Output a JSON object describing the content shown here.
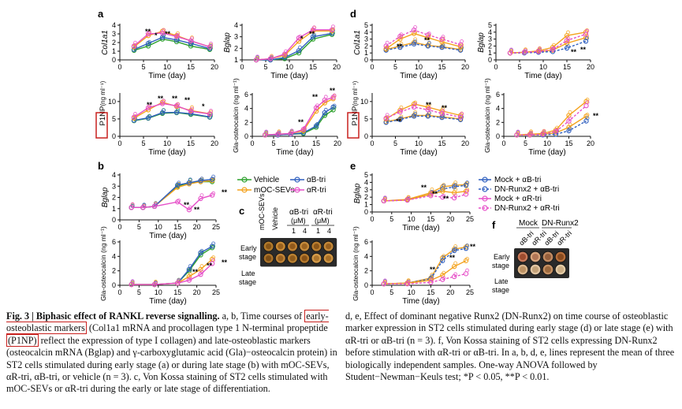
{
  "colors": {
    "vehicle": "#2ca02c",
    "mocsevs": "#f4a21c",
    "abtri": "#2f5fbf",
    "artri": "#e64fc8",
    "highlight": "#c8201e"
  },
  "figure": {
    "panel_labels": {
      "a": "a",
      "b": "b",
      "c": "c",
      "d": "d",
      "e": "e",
      "f": "f"
    },
    "ticks": {
      "t20": [
        "0",
        "5",
        "10",
        "15",
        "20"
      ],
      "t25": [
        "0",
        "5",
        "10",
        "15",
        "20",
        "25"
      ],
      "y0_4": [
        "0",
        "1",
        "2",
        "3",
        "4"
      ],
      "y0_5": [
        "0",
        "1",
        "2",
        "3",
        "4",
        "5"
      ],
      "y1_4": [
        "1",
        "2",
        "3",
        "4"
      ],
      "y0_10": [
        "0",
        "5",
        "10"
      ],
      "y0_6": [
        "0",
        "2",
        "4",
        "6"
      ]
    },
    "labels": {
      "time": "Time (day)",
      "col1a1": "Col1a1",
      "bglap": "Bglap",
      "p1np": "P1NP",
      "p1np_unit": "(ng ml⁻¹)",
      "gla": "Gla-osteocalcin (ng ml⁻¹)"
    },
    "sig": {
      "single": "*",
      "double": "**"
    },
    "legend_b": [
      "Vehicle",
      "mOC-SEVs",
      "αB-tri",
      "αR-tri"
    ],
    "legend_e": [
      "Mock + αB-tri",
      "DN-Runx2 + αB-tri",
      "Mock + αR-tri",
      "DN-Runx2 + αR-tri"
    ],
    "panel_c": {
      "cols": [
        "mOC-SEVs",
        "Vehicle"
      ],
      "abtri": "αB-tri",
      "artri": "αR-tri",
      "um": "(μM)",
      "doses": [
        "1",
        "4",
        "1",
        "4"
      ],
      "rows": [
        "Early stage",
        "Late stage"
      ]
    },
    "panel_f": {
      "mock": "Mock",
      "dn": "DN-Runx2",
      "cols": [
        "αB-tri",
        "αR-tri",
        "αB-tri",
        "αR-tri"
      ],
      "rows": [
        "Early stage",
        "Late stage"
      ]
    }
  },
  "chart_data": [
    {
      "id": "a1",
      "type": "line",
      "ylabel": "Col1a1",
      "xlabel": "Time (day)",
      "xlim": [
        0,
        20
      ],
      "ylim": [
        0,
        4
      ],
      "x": [
        3,
        6,
        9,
        12,
        15,
        19
      ],
      "series": [
        {
          "name": "Vehicle",
          "values": [
            1.1,
            1.6,
            2.4,
            2.1,
            1.6,
            1.2
          ]
        },
        {
          "name": "αB-tri",
          "values": [
            1.2,
            1.9,
            2.6,
            2.3,
            1.9,
            1.3
          ]
        },
        {
          "name": "mOC-SEVs",
          "values": [
            1.5,
            2.8,
            3.3,
            2.8,
            2.2,
            1.5
          ]
        },
        {
          "name": "αR-tri",
          "values": [
            1.6,
            3.0,
            3.1,
            2.7,
            2.2,
            1.5
          ]
        }
      ]
    },
    {
      "id": "a2",
      "type": "line",
      "ylabel": "Bglap",
      "xlabel": "Time (day)",
      "xlim": [
        0,
        20
      ],
      "ylim": [
        1,
        4
      ],
      "x": [
        3,
        6,
        9,
        12,
        15,
        19
      ],
      "series": [
        {
          "name": "Vehicle",
          "values": [
            1.0,
            1.0,
            1.1,
            1.6,
            2.8,
            3.2
          ]
        },
        {
          "name": "αB-tri",
          "values": [
            1.0,
            1.0,
            1.2,
            1.8,
            3.0,
            3.3
          ]
        },
        {
          "name": "mOC-SEVs",
          "values": [
            1.0,
            1.1,
            1.4,
            2.6,
            3.5,
            3.5
          ]
        },
        {
          "name": "αR-tri",
          "values": [
            1.0,
            1.1,
            1.5,
            2.9,
            3.6,
            3.6
          ]
        }
      ]
    },
    {
      "id": "a3",
      "type": "line",
      "ylabel": "P1NP (ng ml⁻¹)",
      "xlabel": "Time (day)",
      "xlim": [
        0,
        20
      ],
      "ylim": [
        0,
        12
      ],
      "x": [
        3,
        6,
        9,
        12,
        15,
        19
      ],
      "series": [
        {
          "name": "Vehicle",
          "values": [
            4.5,
            5.2,
            6.6,
            6.8,
            6.3,
            5.5
          ]
        },
        {
          "name": "αB-tri",
          "values": [
            4.6,
            5.3,
            6.8,
            6.9,
            6.5,
            5.6
          ]
        },
        {
          "name": "mOC-SEVs",
          "values": [
            5.2,
            7.6,
            9.8,
            8.6,
            7.4,
            6.5
          ]
        },
        {
          "name": "αR-tri",
          "values": [
            5.5,
            8.2,
            9.4,
            8.8,
            7.2,
            6.4
          ]
        }
      ]
    },
    {
      "id": "a4",
      "type": "line",
      "ylabel": "Gla-osteocalcin (ng ml⁻¹)",
      "xlabel": "Time (day)",
      "xlim": [
        0,
        20
      ],
      "ylim": [
        0,
        6
      ],
      "x": [
        3,
        6,
        9,
        12,
        15,
        17,
        19
      ],
      "series": [
        {
          "name": "Vehicle",
          "values": [
            0.2,
            0.2,
            0.3,
            0.4,
            1.3,
            3.0,
            3.8
          ]
        },
        {
          "name": "αB-tri",
          "values": [
            0.2,
            0.2,
            0.3,
            0.5,
            1.5,
            3.4,
            4.2
          ]
        },
        {
          "name": "mOC-SEVs",
          "values": [
            0.2,
            0.3,
            0.4,
            0.8,
            3.6,
            4.8,
            5.4
          ]
        },
        {
          "name": "αR-tri",
          "values": [
            0.2,
            0.3,
            0.4,
            1.0,
            4.1,
            5.2,
            5.6
          ]
        }
      ]
    },
    {
      "id": "b1",
      "type": "line",
      "ylabel": "Bglap",
      "xlabel": "Time (day)",
      "xlim": [
        0,
        25
      ],
      "ylim": [
        0,
        4
      ],
      "x": [
        3,
        6,
        9,
        15,
        18,
        21,
        24
      ],
      "series": [
        {
          "name": "Vehicle",
          "values": [
            1.1,
            1.1,
            1.2,
            3.0,
            3.3,
            3.4,
            3.4
          ]
        },
        {
          "name": "mOC-SEVs",
          "values": [
            1.1,
            1.1,
            1.2,
            2.9,
            3.2,
            3.4,
            3.5
          ]
        },
        {
          "name": "αB-tri",
          "values": [
            1.1,
            1.1,
            1.2,
            3.1,
            3.3,
            3.5,
            3.6
          ]
        },
        {
          "name": "αR-tri",
          "values": [
            1.1,
            1.1,
            1.2,
            1.6,
            0.9,
            1.9,
            2.2
          ]
        }
      ]
    },
    {
      "id": "b2",
      "type": "line",
      "ylabel": "Gla-osteocalcin (ng ml⁻¹)",
      "xlabel": "Time (day)",
      "xlim": [
        0,
        25
      ],
      "ylim": [
        0,
        6
      ],
      "x": [
        3,
        9,
        15,
        18,
        21,
        24
      ],
      "series": [
        {
          "name": "Vehicle",
          "values": [
            0.1,
            0.1,
            0.3,
            2.0,
            4.2,
            5.2
          ]
        },
        {
          "name": "αB-tri",
          "values": [
            0.1,
            0.1,
            0.3,
            2.2,
            4.5,
            5.4
          ]
        },
        {
          "name": "mOC-SEVs",
          "values": [
            0.1,
            0.1,
            0.3,
            1.2,
            2.2,
            3.6
          ]
        },
        {
          "name": "αR-tri",
          "values": [
            0.1,
            0.1,
            0.3,
            0.7,
            1.5,
            3.0
          ]
        }
      ]
    },
    {
      "id": "d1",
      "type": "line",
      "ylabel": "Col1a1",
      "xlabel": "Time (day)",
      "xlim": [
        0,
        20
      ],
      "ylim": [
        0,
        5
      ],
      "x": [
        3,
        6,
        9,
        12,
        15,
        19
      ],
      "series": [
        {
          "name": "Mock + αB-tri",
          "values": [
            1.5,
            2.0,
            2.5,
            2.1,
            1.9,
            1.5
          ]
        },
        {
          "name": "DN-Runx2 + αB-tri",
          "values": [
            1.4,
            1.8,
            2.3,
            2.0,
            1.8,
            1.4
          ]
        },
        {
          "name": "Mock + αR-tri",
          "values": [
            1.6,
            3.0,
            3.8,
            3.2,
            2.6,
            1.9
          ]
        },
        {
          "name": "DN-Runx2 + αR-tri",
          "values": [
            2.0,
            3.4,
            4.3,
            3.6,
            3.0,
            2.2
          ]
        }
      ]
    },
    {
      "id": "d2",
      "type": "line",
      "ylabel": "Bglap",
      "xlabel": "Time (day)",
      "xlim": [
        0,
        20
      ],
      "ylim": [
        0,
        5
      ],
      "x": [
        3,
        6,
        9,
        12,
        15,
        19
      ],
      "series": [
        {
          "name": "Mock + αB-tri",
          "values": [
            1.0,
            1.1,
            1.2,
            1.4,
            2.4,
            3.2
          ]
        },
        {
          "name": "DN-Runx2 + αB-tri",
          "values": [
            1.0,
            1.0,
            1.1,
            1.2,
            1.7,
            2.7
          ]
        },
        {
          "name": "Mock + αR-tri",
          "values": [
            1.0,
            1.1,
            1.3,
            1.8,
            3.5,
            4.0
          ]
        },
        {
          "name": "DN-Runx2 + αR-tri",
          "values": [
            1.0,
            1.1,
            1.2,
            1.5,
            2.8,
            3.7
          ]
        }
      ]
    },
    {
      "id": "d3",
      "type": "line",
      "ylabel": "P1NP (ng ml⁻¹)",
      "xlabel": "Time (day)",
      "xlim": [
        0,
        20
      ],
      "ylim": [
        0,
        12
      ],
      "x": [
        3,
        6,
        9,
        12,
        15,
        19
      ],
      "series": [
        {
          "name": "Mock + αB-tri",
          "values": [
            4.2,
            5.0,
            6.0,
            6.0,
            5.6,
            5.0
          ]
        },
        {
          "name": "DN-Runx2 + αB-tri",
          "values": [
            4.0,
            4.8,
            5.8,
            5.8,
            5.4,
            4.8
          ]
        },
        {
          "name": "Mock + αR-tri",
          "values": [
            5.0,
            7.5,
            9.3,
            8.4,
            7.3,
            6.0
          ]
        },
        {
          "name": "DN-Runx2 + αR-tri",
          "values": [
            5.2,
            7.0,
            8.4,
            7.6,
            6.6,
            5.5
          ]
        }
      ]
    },
    {
      "id": "d4",
      "type": "line",
      "ylabel": "Gla-osteocalcin (ng ml⁻¹)",
      "xlabel": "Time (day)",
      "xlim": [
        0,
        20
      ],
      "ylim": [
        0,
        6
      ],
      "x": [
        3,
        6,
        9,
        12,
        15,
        19
      ],
      "series": [
        {
          "name": "Mock + αB-tri",
          "values": [
            0.2,
            0.2,
            0.3,
            0.5,
            1.3,
            2.9
          ]
        },
        {
          "name": "DN-Runx2 + αB-tri",
          "values": [
            0.2,
            0.2,
            0.2,
            0.3,
            0.8,
            2.2
          ]
        },
        {
          "name": "Mock + αR-tri",
          "values": [
            0.2,
            0.3,
            0.4,
            0.9,
            3.0,
            5.0
          ]
        },
        {
          "name": "DN-Runx2 + αR-tri",
          "values": [
            0.2,
            0.2,
            0.3,
            0.7,
            2.2,
            4.4
          ]
        }
      ]
    },
    {
      "id": "e1",
      "type": "line",
      "ylabel": "Bglap",
      "xlabel": "Time (day)",
      "xlim": [
        0,
        25
      ],
      "ylim": [
        0,
        5
      ],
      "x": [
        3,
        9,
        15,
        18,
        21,
        24
      ],
      "series": [
        {
          "name": "Mock + αB-tri",
          "values": [
            1.5,
            1.7,
            2.6,
            3.4,
            3.6,
            3.7
          ]
        },
        {
          "name": "DN-Runx2 + αB-tri",
          "values": [
            1.5,
            1.6,
            2.4,
            3.1,
            3.4,
            3.6
          ]
        },
        {
          "name": "Mock + αR-tri",
          "values": [
            1.5,
            1.6,
            2.4,
            2.8,
            2.6,
            2.8
          ]
        },
        {
          "name": "DN-Runx2 + αR-tri",
          "values": [
            1.5,
            1.6,
            2.2,
            2.0,
            1.9,
            2.4
          ]
        }
      ]
    },
    {
      "id": "e2",
      "type": "line",
      "ylabel": "Gla-osteocalcin (ng ml⁻¹)",
      "xlabel": "Time (day)",
      "xlim": [
        0,
        25
      ],
      "ylim": [
        0,
        6
      ],
      "x": [
        3,
        9,
        15,
        18,
        21,
        24
      ],
      "series": [
        {
          "name": "Mock + αB-tri",
          "values": [
            0.2,
            0.3,
            1.0,
            3.8,
            5.0,
            5.3
          ]
        },
        {
          "name": "DN-Runx2 + αB-tri",
          "values": [
            0.2,
            0.3,
            0.9,
            3.4,
            4.8,
            5.1
          ]
        },
        {
          "name": "Mock + αR-tri",
          "values": [
            0.2,
            0.3,
            0.7,
            1.4,
            2.6,
            3.4
          ]
        },
        {
          "name": "DN-Runx2 + αR-tri",
          "values": [
            0.2,
            0.2,
            0.4,
            0.8,
            1.2,
            1.6
          ]
        }
      ]
    }
  ],
  "caption": {
    "title": "Fig. 3 | Biphasic effect of RANKL reverse signalling.",
    "p1": " a, b, Time courses of ",
    "early_markers": "early-osteoblastic markers",
    "p2": " (Col1a1 mRNA and procollagen type 1 N-terminal propeptide ",
    "p1np": "(P1NP)",
    "p3": " reflect the expression of type I collagen) and late-osteoblastic markers (osteocalcin mRNA (Bglap) and γ-carboxyglutamic acid (Gla)−osteocalcin protein) in ST2 cells stimulated during early stage (a) or during late stage (b) with mOC-SEVs, αR-tri, αB-tri, or vehicle (n = 3). c, Von Kossa staining of ST2 cells stimulated with mOC-SEVs or αR-tri during the early or late stage of differentiation.",
    "right": "d, e, Effect of dominant negative Runx2 (DN-Runx2) on time course of osteoblastic marker expression in ST2 cells stimulated during early stage (d) or late stage (e) with αR-tri or αB-tri (n = 3). f, Von Kossa staining of ST2 cells expressing DN-Runx2 before stimulation with αR-tri or αB-tri. In a, b, d, e, lines represent the mean of three biologically independent samples. One-way ANOVA followed by Student−Newman−Keuls test; *P < 0.05, **P < 0.01."
  }
}
